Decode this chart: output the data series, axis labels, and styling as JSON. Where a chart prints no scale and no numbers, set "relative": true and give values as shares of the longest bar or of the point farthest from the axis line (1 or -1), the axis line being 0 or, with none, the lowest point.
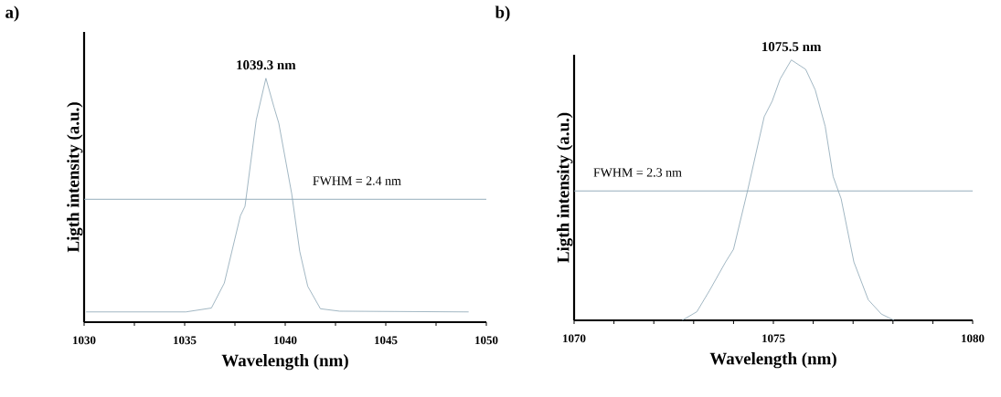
{
  "chart_data": [
    {
      "type": "line",
      "title": "a)",
      "xlabel": "Wavelength (nm)",
      "ylabel": "Ligth intensity (a.u.)",
      "relative": true,
      "xlim": [
        1030,
        1050
      ],
      "xticks": [
        1030,
        {
          "value": 1032.5,
          "label": null
        },
        1035,
        {
          "value": 1037.5,
          "label": null
        },
        1040,
        {
          "value": 1042.5,
          "label": null
        },
        1045,
        {
          "value": 1047.5,
          "label": null
        },
        1050
      ],
      "series": [
        {
          "color": "#8aa4b4",
          "x": [
            1030.1,
            1035.06,
            1036.33,
            1036.97,
            1037.77,
            1038.0,
            1038.56,
            1039.04,
            1039.44,
            1039.68,
            1040.32,
            1040.72,
            1041.12,
            1041.75,
            1042.71,
            1049.12
          ],
          "values": [
            0.042,
            0.042,
            0.058,
            0.16,
            0.436,
            0.475,
            0.829,
            1.0,
            0.882,
            0.816,
            0.528,
            0.291,
            0.147,
            0.055,
            0.045,
            0.042
          ]
        }
      ],
      "ref_lines": [
        {
          "axis": "y",
          "value": 0.504,
          "color": "#8aa4b4"
        }
      ],
      "annotations": [
        "1039.3 nm",
        "FWHM = 2.4 nm"
      ],
      "marker": "none",
      "line_style": "solid",
      "grid": false
    },
    {
      "type": "line",
      "title": "b)",
      "xlabel": "Wavelength (nm)",
      "ylabel": "Ligth intensity (a.u.)",
      "relative": true,
      "xlim": [
        1070,
        1080
      ],
      "xticks": [
        1070,
        {
          "value": 1071,
          "label": null
        },
        {
          "value": 1072,
          "label": null
        },
        {
          "value": 1073,
          "label": null
        },
        {
          "value": 1074,
          "label": null
        },
        1075,
        {
          "value": 1076,
          "label": null
        },
        {
          "value": 1077,
          "label": null
        },
        {
          "value": 1078,
          "label": null
        },
        {
          "value": 1079,
          "label": null
        },
        1080
      ],
      "series": [
        {
          "color": "#8aa4b4",
          "x": [
            1072.71,
            1073.08,
            1073.4,
            1073.8,
            1074.0,
            1074.36,
            1074.77,
            1074.97,
            1075.17,
            1075.45,
            1075.81,
            1076.05,
            1076.3,
            1076.5,
            1076.7,
            1077.02,
            1077.38,
            1077.71,
            1078.03
          ],
          "values": [
            0.0,
            0.033,
            0.115,
            0.224,
            0.273,
            0.503,
            0.782,
            0.842,
            0.927,
            1.0,
            0.964,
            0.885,
            0.745,
            0.552,
            0.467,
            0.224,
            0.079,
            0.024,
            0.0
          ]
        }
      ],
      "ref_lines": [
        {
          "axis": "y",
          "value": 0.497,
          "color": "#8aa4b4"
        }
      ],
      "annotations": [
        "1075.5 nm",
        "FWHM = 2.3 nm"
      ],
      "marker": "none",
      "line_style": "solid",
      "grid": false
    }
  ]
}
